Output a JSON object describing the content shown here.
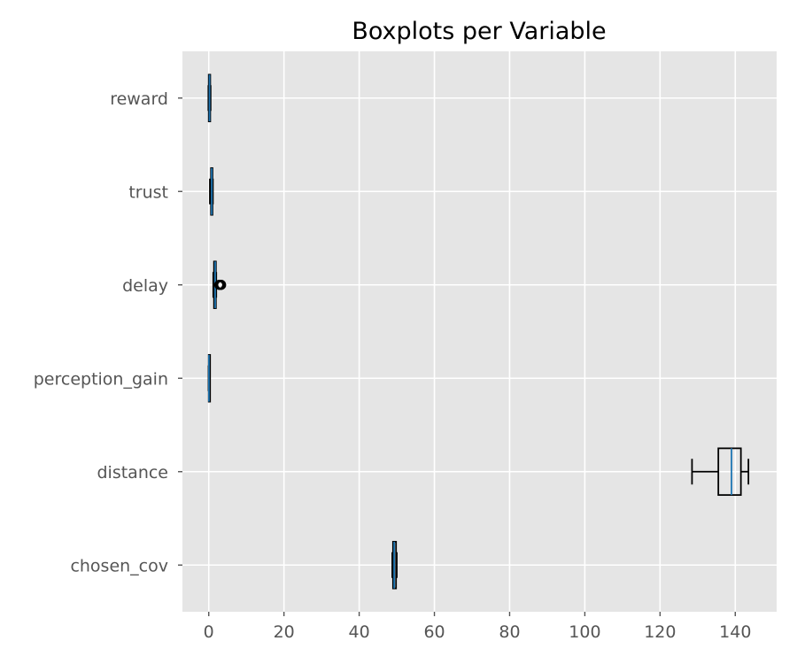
{
  "chart_data": {
    "type": "boxplot",
    "title": "Boxplots per Variable",
    "orientation": "horizontal",
    "xlim": [
      -7,
      151
    ],
    "x_ticks": [
      0,
      20,
      40,
      60,
      80,
      100,
      120,
      140
    ],
    "grid": true,
    "colors": {
      "background": "#e5e5e5",
      "grid": "#ffffff",
      "box": "#000000",
      "median": "#1f77b4"
    },
    "variables": [
      {
        "name": "reward",
        "whislo": -0.1,
        "q1": 0.0,
        "med": 0.2,
        "q3": 0.4,
        "whishi": 0.5,
        "fliers": []
      },
      {
        "name": "trust",
        "whislo": 0.3,
        "q1": 0.6,
        "med": 0.8,
        "q3": 1.0,
        "whishi": 1.1,
        "fliers": []
      },
      {
        "name": "delay",
        "whislo": 1.2,
        "q1": 1.4,
        "med": 1.7,
        "q3": 1.9,
        "whishi": 2.0,
        "fliers": [
          2.8,
          3.1,
          3.3
        ]
      },
      {
        "name": "perception_gain",
        "whislo": -0.05,
        "q1": 0.0,
        "med": 0.05,
        "q3": 0.1,
        "whishi": 0.15,
        "fliers": []
      },
      {
        "name": "distance",
        "whislo": 128.5,
        "q1": 135.5,
        "med": 139.0,
        "q3": 141.5,
        "whishi": 143.5,
        "fliers": []
      },
      {
        "name": "chosen_cov",
        "whislo": 48.8,
        "q1": 49.0,
        "med": 49.3,
        "q3": 49.8,
        "whishi": 50.0,
        "fliers": []
      }
    ]
  }
}
